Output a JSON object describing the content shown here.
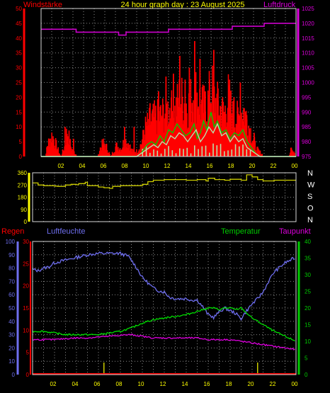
{
  "header": {
    "title": "24 hour graph day : 23 August 2025",
    "left_label": "Windstärke",
    "right_label": "Luftdruck"
  },
  "colors": {
    "background": "#000000",
    "frame": "#d8d8d8",
    "grid": "#8a8a8a",
    "wind": "#ff0000",
    "gust_avg": "#00cc00",
    "gust_light": "#b8e0a8",
    "pressure": "#cc00cc",
    "direction": "#cccc00",
    "humidity": "#6e6eee",
    "temperature": "#00dd00",
    "dewpoint": "#dd00dd",
    "rain": "#ff0000",
    "rain_tick": "#cccc00",
    "title": "#ffff00",
    "axis_red": "#ff0000",
    "axis_magenta": "#dd00dd",
    "axis_yellow": "#ffff00",
    "axis_blue": "#6e6eee",
    "axis_green": "#00cc00",
    "compass": "#ffffff"
  },
  "chart_data": [
    {
      "type": "bar",
      "name": "wind",
      "xlim": [
        0,
        24
      ],
      "x_ticks": [
        "02",
        "04",
        "06",
        "08",
        "10",
        "12",
        "14",
        "16",
        "18",
        "20",
        "22",
        "00"
      ],
      "left_axis": {
        "label": "Windstärke",
        "ylim": [
          0,
          50
        ],
        "ticks": [
          0,
          5,
          10,
          15,
          20,
          25,
          30,
          35,
          40,
          45,
          50
        ]
      },
      "right_axis": {
        "label": "Luftdruck",
        "ylim": [
          975,
          1025
        ],
        "ticks": [
          975,
          980,
          985,
          990,
          995,
          1000,
          1005,
          1010,
          1015,
          1020,
          1025
        ]
      },
      "gust_profile": {
        "hours": [
          0,
          0.4,
          0.5,
          1.0,
          1.8,
          2.2,
          2.4,
          2.8,
          3.4,
          4.2,
          5.3,
          5.5,
          5.8,
          6.2,
          6.5,
          7.0,
          7.5,
          7.8,
          8.2,
          8.5,
          9.0,
          9.4,
          9.8,
          10.5,
          11.2,
          12.0,
          12.5,
          13.0,
          13.5,
          13.9,
          14.3,
          14.7,
          15.0,
          15.5,
          16.0,
          16.4,
          16.8,
          17.2,
          17.6,
          18.0,
          18.5,
          19.0,
          19.4,
          19.8,
          20.2,
          21,
          22,
          22.5,
          23.3,
          23.5,
          24
        ],
        "values": [
          0,
          0,
          4,
          8,
          0,
          4,
          10,
          3,
          0,
          0,
          0,
          3,
          5,
          3,
          0,
          4,
          3,
          6,
          5,
          2,
          2,
          5,
          11,
          14,
          15,
          18,
          16,
          22,
          20,
          19,
          24,
          23,
          19,
          18,
          25,
          20,
          18,
          16,
          22,
          15,
          14,
          18,
          13,
          8,
          3,
          0,
          0,
          0,
          0,
          3,
          0
        ]
      },
      "gust_peaks": [
        [
          2.2,
          10
        ],
        [
          3.0,
          6
        ],
        [
          7.8,
          10
        ],
        [
          8.7,
          10
        ],
        [
          9.6,
          9
        ],
        [
          10.2,
          18
        ],
        [
          11.0,
          22
        ],
        [
          11.7,
          27
        ],
        [
          12.2,
          20
        ],
        [
          12.4,
          28
        ],
        [
          13.0,
          34
        ],
        [
          13.5,
          26
        ],
        [
          13.9,
          30
        ],
        [
          14.4,
          39
        ],
        [
          14.9,
          33
        ],
        [
          15.4,
          22
        ],
        [
          15.8,
          26
        ],
        [
          16.2,
          36
        ],
        [
          16.6,
          23
        ],
        [
          17.0,
          19
        ],
        [
          17.7,
          22
        ],
        [
          18.1,
          20
        ],
        [
          18.7,
          25
        ],
        [
          19.3,
          14
        ],
        [
          20.0,
          8
        ],
        [
          23.5,
          3
        ]
      ],
      "series": [
        {
          "name": "average",
          "x": [
            0,
            6.3,
            7.0,
            7.6,
            8.1,
            8.6,
            8.8,
            9.0,
            9.4,
            9.8,
            10.0,
            10.4,
            10.8,
            11.2,
            11.6,
            12.0,
            12.4,
            12.8,
            13.2,
            13.6,
            14.0,
            14.4,
            14.7,
            15.0,
            15.3,
            15.6,
            16.0,
            16.3,
            16.6,
            17.0,
            17.4,
            17.8,
            18.2,
            18.6,
            19.0,
            19.4,
            19.8,
            20.2,
            20.6,
            21,
            24
          ],
          "y": [
            0,
            0,
            0,
            0,
            0,
            0,
            0,
            0,
            1,
            3,
            4,
            5,
            4,
            7,
            5,
            9,
            8,
            11,
            9,
            7,
            8,
            11,
            6,
            8,
            12,
            9,
            15,
            10,
            12,
            8,
            9,
            6,
            8,
            7,
            9,
            5,
            3,
            1,
            0,
            0,
            0
          ]
        },
        {
          "name": "speed",
          "x": [
            0,
            6.6,
            7.0,
            7.4,
            7.8,
            8.2,
            8.6,
            9.0,
            9.4,
            9.8,
            10.2,
            10.6,
            11.0,
            11.4,
            11.8,
            12.2,
            12.6,
            13.0,
            13.4,
            13.8,
            14.2,
            14.6,
            15.0,
            15.4,
            15.8,
            16.2,
            16.6,
            17.0,
            17.4,
            17.8,
            18.2,
            18.6,
            19.0,
            19.4,
            19.8,
            20.2,
            20.6,
            24
          ],
          "y": [
            0,
            0,
            0,
            0,
            0,
            0,
            0,
            0,
            1,
            2,
            3,
            4,
            3,
            5,
            4,
            7,
            6,
            8,
            7,
            5,
            7,
            9,
            5,
            7,
            10,
            8,
            11,
            7,
            8,
            5,
            7,
            5,
            6,
            3,
            2,
            1,
            0,
            0
          ]
        },
        {
          "name": "pressure",
          "x": [
            0,
            3.3,
            3.3,
            7.3,
            7.3,
            8.0,
            8.0,
            12.0,
            12.0,
            18.0,
            18.0,
            21.0,
            21.0,
            24.0
          ],
          "y": [
            1018,
            1018,
            1017,
            1017,
            1016,
            1016,
            1017,
            1017,
            1018,
            1018,
            1019,
            1019,
            1020,
            1020
          ]
        }
      ]
    },
    {
      "type": "line",
      "name": "wind_direction",
      "xlim": [
        0,
        24
      ],
      "ylim": [
        0,
        360
      ],
      "y_ticks": [
        0,
        90,
        180,
        270,
        360
      ],
      "compass_labels": [
        "N",
        "W",
        "S",
        "O",
        "N"
      ],
      "series": [
        {
          "name": "direction",
          "x": [
            0,
            0.5,
            1.0,
            2.0,
            2.3,
            3.0,
            3.5,
            4.0,
            4.2,
            4.8,
            5.0,
            6.0,
            6.5,
            7.0,
            7.3,
            8.0,
            9.0,
            9.5,
            10.0,
            10.5,
            11.0,
            12.0,
            13.0,
            14.0,
            15.0,
            15.8,
            16.0,
            16.6,
            17.5,
            18.0,
            19.0,
            19.5,
            20.0,
            20.5,
            21.0,
            22.0,
            23.0,
            24
          ],
          "y": [
            285,
            270,
            265,
            262,
            260,
            270,
            275,
            272,
            280,
            290,
            265,
            255,
            250,
            245,
            260,
            265,
            265,
            265,
            275,
            295,
            305,
            310,
            310,
            305,
            310,
            300,
            320,
            310,
            305,
            312,
            305,
            345,
            330,
            310,
            300,
            305,
            305,
            305
          ]
        }
      ]
    },
    {
      "type": "line",
      "name": "climate",
      "xlim": [
        0,
        24
      ],
      "labels": {
        "rain": "Regen",
        "humidity": "Luftfeuchte",
        "temperature": "Temperatur",
        "dewpoint": "Taupunkt"
      },
      "humidity_axis": {
        "ylim": [
          0,
          100
        ],
        "ticks": [
          0,
          10,
          20,
          30,
          40,
          50,
          60,
          70,
          80,
          90,
          100
        ]
      },
      "rain_axis": {
        "ylim": [
          0,
          30
        ],
        "ticks": [
          0,
          5,
          10,
          15,
          20,
          25,
          30
        ]
      },
      "temp_axis": {
        "ylim": [
          0,
          40
        ],
        "ticks": [
          0,
          5,
          10,
          15,
          20,
          25,
          30,
          35,
          40
        ]
      },
      "series": [
        {
          "name": "humidity",
          "x": [
            0,
            0.5,
            1.0,
            1.5,
            2.0,
            3.0,
            4.0,
            5.0,
            6.0,
            7.0,
            8.0,
            8.7,
            9.0,
            9.5,
            10.0,
            10.5,
            11.0,
            11.5,
            12.0,
            12.5,
            13.0,
            14.0,
            14.5,
            15.0,
            15.5,
            16.0,
            16.5,
            17.0,
            17.5,
            18.0,
            18.5,
            19.0,
            19.5,
            20.0,
            20.5,
            21.0,
            21.5,
            22.0,
            23.0,
            24
          ],
          "y": [
            79,
            78,
            80,
            81,
            84,
            86,
            88,
            90,
            91,
            91,
            91,
            89,
            86,
            80,
            73,
            69,
            65,
            63,
            62,
            58,
            57,
            57,
            56,
            56,
            51,
            45,
            43,
            47,
            50,
            48,
            46,
            42,
            48,
            53,
            57,
            62,
            70,
            77,
            84,
            88
          ]
        },
        {
          "name": "temperature",
          "x": [
            0,
            1,
            2,
            3,
            4,
            5,
            6,
            7,
            8,
            9,
            10,
            11,
            12,
            13,
            14,
            15,
            15.5,
            16,
            16.5,
            17,
            17.5,
            18,
            18.5,
            19,
            19.5,
            20,
            21,
            22,
            23,
            24
          ],
          "y": [
            13,
            13,
            12.5,
            12,
            12,
            12,
            12,
            12.5,
            13,
            14,
            15.5,
            16.5,
            17,
            17.5,
            18,
            19,
            19.5,
            20,
            20,
            19.5,
            20,
            20,
            19.5,
            20,
            18.5,
            17,
            15,
            13,
            11.5,
            10
          ]
        },
        {
          "name": "dewpoint",
          "x": [
            0,
            1,
            2,
            3,
            4,
            5,
            6,
            7,
            8,
            9,
            10,
            11,
            12,
            13,
            14,
            15,
            16,
            17,
            18,
            19,
            20,
            21,
            22,
            23,
            24
          ],
          "y": [
            10.5,
            10.5,
            10.5,
            10.8,
            11,
            11,
            11.3,
            11.5,
            11.8,
            12,
            11.5,
            11,
            11,
            11,
            11,
            11,
            10.5,
            10.5,
            10.5,
            10,
            9.5,
            9,
            8.5,
            8,
            7.5
          ]
        },
        {
          "name": "rain",
          "x": [
            0,
            24
          ],
          "y": [
            0,
            0
          ]
        }
      ],
      "rain_ticks": [
        6.5,
        20.5
      ]
    }
  ]
}
